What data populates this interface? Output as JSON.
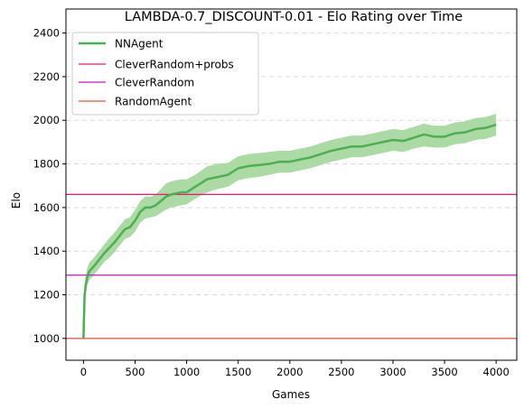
{
  "chart_data": {
    "type": "line",
    "title": "LAMBDA-0.7_DISCOUNT-0.01 - Elo Rating over Time",
    "xlabel": "Games",
    "ylabel": "Elo",
    "xlim": [
      -170,
      4200
    ],
    "ylim": [
      900,
      2510
    ],
    "x_ticks": [
      0,
      500,
      1000,
      1500,
      2000,
      2500,
      3000,
      3500,
      4000
    ],
    "y_ticks": [
      1000,
      1200,
      1400,
      1600,
      1800,
      2000,
      2200,
      2400
    ],
    "grid": "y-dashed",
    "legend_position": "upper-left",
    "series": [
      {
        "name": "NNAgent",
        "color": "#4caf50",
        "band_color": "#a3d69b",
        "x": [
          0,
          10,
          20,
          40,
          60,
          80,
          100,
          150,
          200,
          250,
          300,
          350,
          400,
          450,
          500,
          550,
          600,
          650,
          700,
          750,
          800,
          850,
          900,
          950,
          1000,
          1100,
          1200,
          1300,
          1400,
          1500,
          1600,
          1700,
          1800,
          1900,
          2000,
          2100,
          2200,
          2300,
          2400,
          2500,
          2600,
          2700,
          2800,
          2900,
          3000,
          3100,
          3200,
          3300,
          3400,
          3500,
          3600,
          3700,
          3800,
          3900,
          4000
        ],
        "y": [
          1000,
          1190,
          1240,
          1290,
          1310,
          1320,
          1330,
          1360,
          1390,
          1415,
          1440,
          1470,
          1500,
          1510,
          1540,
          1580,
          1600,
          1600,
          1610,
          1630,
          1650,
          1660,
          1665,
          1670,
          1670,
          1700,
          1730,
          1740,
          1750,
          1780,
          1790,
          1795,
          1800,
          1810,
          1810,
          1820,
          1830,
          1845,
          1860,
          1870,
          1880,
          1880,
          1890,
          1900,
          1910,
          1905,
          1920,
          1935,
          1925,
          1925,
          1940,
          1945,
          1960,
          1965,
          1980
        ],
        "y_lower": [
          1000,
          1140,
          1200,
          1250,
          1270,
          1280,
          1290,
          1320,
          1350,
          1370,
          1395,
          1425,
          1455,
          1465,
          1490,
          1530,
          1550,
          1555,
          1560,
          1575,
          1590,
          1600,
          1605,
          1610,
          1615,
          1645,
          1670,
          1685,
          1695,
          1725,
          1735,
          1740,
          1750,
          1760,
          1760,
          1770,
          1780,
          1795,
          1810,
          1820,
          1830,
          1830,
          1840,
          1850,
          1860,
          1855,
          1870,
          1880,
          1875,
          1875,
          1890,
          1895,
          1910,
          1915,
          1930
        ],
        "y_upper": [
          1000,
          1240,
          1280,
          1330,
          1350,
          1360,
          1370,
          1400,
          1430,
          1460,
          1485,
          1515,
          1545,
          1555,
          1590,
          1630,
          1650,
          1650,
          1660,
          1685,
          1710,
          1720,
          1725,
          1730,
          1730,
          1755,
          1790,
          1800,
          1805,
          1835,
          1845,
          1850,
          1855,
          1860,
          1860,
          1870,
          1880,
          1895,
          1910,
          1920,
          1930,
          1930,
          1940,
          1950,
          1960,
          1955,
          1970,
          1985,
          1975,
          1975,
          1990,
          1995,
          2010,
          2015,
          2030
        ]
      },
      {
        "name": "CleverRandom+probs",
        "color": "#e8196f",
        "y": 1660
      },
      {
        "name": "CleverRandom",
        "color": "#c814c8",
        "y": 1290
      },
      {
        "name": "RandomAgent",
        "color": "#e8503a",
        "y": 1000
      }
    ]
  }
}
